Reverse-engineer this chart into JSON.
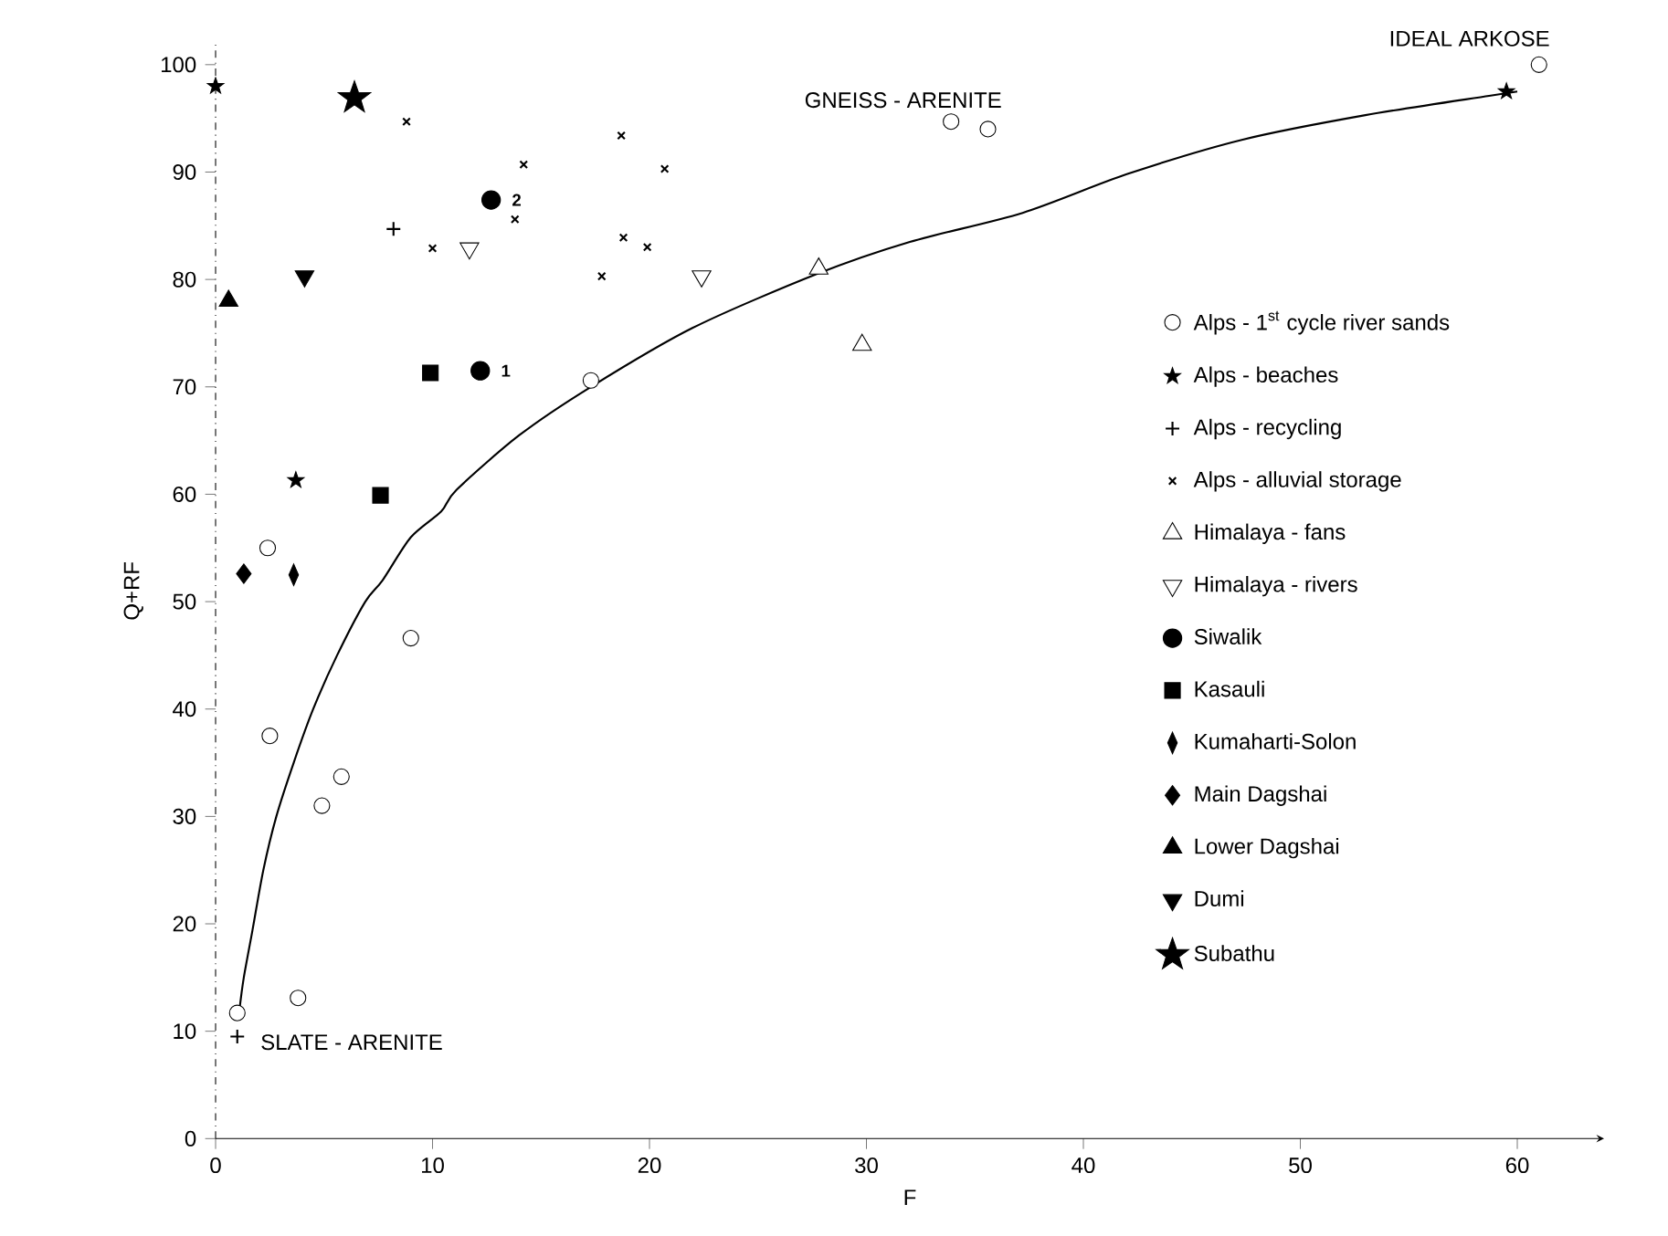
{
  "chart_data": {
    "type": "scatter",
    "xlabel": "F",
    "ylabel": "Q+RF",
    "xlim": [
      0,
      64
    ],
    "ylim": [
      0,
      102
    ],
    "xticks": [
      0,
      10,
      20,
      30,
      40,
      50,
      60
    ],
    "yticks": [
      0,
      10,
      20,
      30,
      40,
      50,
      60,
      70,
      80,
      90,
      100
    ],
    "grid": false,
    "legend": "right",
    "series": [
      {
        "name": "Alps - 1$^{st}$ cycle river sands",
        "color": "#000000",
        "marker": "circle-open",
        "x": [
          1.0,
          3.8,
          2.5,
          4.9,
          5.8,
          9.0,
          2.4,
          17.3,
          33.9,
          35.6,
          61
        ],
        "values": [
          11.7,
          13.1,
          37.5,
          31,
          33.7,
          46.6,
          55,
          70.6,
          94.7,
          94,
          100
        ]
      },
      {
        "name": "Alps - beaches",
        "color": "#000000",
        "marker": "star-small",
        "x": [
          3.7,
          59.5,
          0
        ],
        "values": [
          61.3,
          97.5,
          98
        ]
      },
      {
        "name": "Alps - recycling",
        "color": "#000000",
        "marker": "plus",
        "x": [
          8.2,
          1.0
        ],
        "values": [
          84.7,
          9.5
        ]
      },
      {
        "name": "Alps - alluvial storage",
        "color": "#000000",
        "marker": "cross",
        "x": [
          8.8,
          14.2,
          13.8,
          10,
          18.7,
          20.7,
          18.8,
          19.9,
          17.8
        ],
        "values": [
          94.7,
          90.7,
          85.6,
          82.9,
          93.4,
          90.3,
          83.9,
          83,
          80.3
        ]
      },
      {
        "name": "Himalaya - fans",
        "color": "#000000",
        "marker": "triangle-open",
        "x": [
          27.8,
          29.8
        ],
        "values": [
          81,
          73.9
        ]
      },
      {
        "name": "Himalaya - rivers",
        "color": "#000000",
        "marker": "triangle-down-open",
        "x": [
          11.7,
          22.4
        ],
        "values": [
          82.9,
          80.3
        ]
      },
      {
        "name": "Siwalik",
        "color": "#000000",
        "marker": "circle",
        "x": [
          12.2,
          12.7
        ],
        "values": [
          71.5,
          87.4
        ]
      },
      {
        "name": "Kasauli",
        "color": "#000000",
        "marker": "square",
        "x": [
          7.6,
          9.9
        ],
        "values": [
          59.9,
          71.3
        ]
      },
      {
        "name": "Kumaharti-Solon",
        "color": "#000000",
        "marker": "diamond-tall",
        "x": [
          3.6
        ],
        "values": [
          52.5
        ]
      },
      {
        "name": "Main Dagshai",
        "color": "#000000",
        "marker": "diamond",
        "x": [
          1.3
        ],
        "values": [
          52.6
        ]
      },
      {
        "name": "Lower Dagshai",
        "color": "#000000",
        "marker": "triangle",
        "x": [
          0.6
        ],
        "values": [
          78
        ]
      },
      {
        "name": "Dumi",
        "color": "#000000",
        "marker": "triangle-down",
        "x": [
          4.1
        ],
        "values": [
          80.3
        ]
      },
      {
        "name": "Subathu",
        "color": "#000000",
        "marker": "star",
        "x": [
          6.4
        ],
        "values": [
          96.9
        ]
      },
      {
        "type": "line",
        "color": "#000000",
        "marker": "none",
        "x": [
          1.1,
          1.3,
          1.7,
          2.2,
          2.8,
          3.6,
          4.5,
          5.6,
          6.9,
          7.7,
          9,
          10.4,
          11.1,
          14,
          17.3,
          22,
          27.7,
          32,
          37.2,
          42,
          47.3,
          53,
          58.7,
          60
        ],
        "values": [
          12,
          15,
          19.4,
          25,
          30,
          35,
          40,
          45,
          50,
          52,
          56,
          58.4,
          60.4,
          65.5,
          70,
          75.5,
          80.5,
          83.5,
          86.2,
          89.8,
          93,
          95.3,
          97.1,
          97.5
        ]
      }
    ],
    "annotations": [
      {
        "text": "IDEAL ARKOSE",
        "x": 61,
        "y": 100
      },
      {
        "text": "GNEISS - ARENITE",
        "x": 34.5,
        "y": 94.5
      },
      {
        "text": "SLATE - ARENITE",
        "x": 1.0,
        "y": 11.7
      },
      {
        "text": "1",
        "x": 12.2,
        "y": 71.5
      },
      {
        "text": "2",
        "x": 12.7,
        "y": 87.4
      }
    ]
  }
}
